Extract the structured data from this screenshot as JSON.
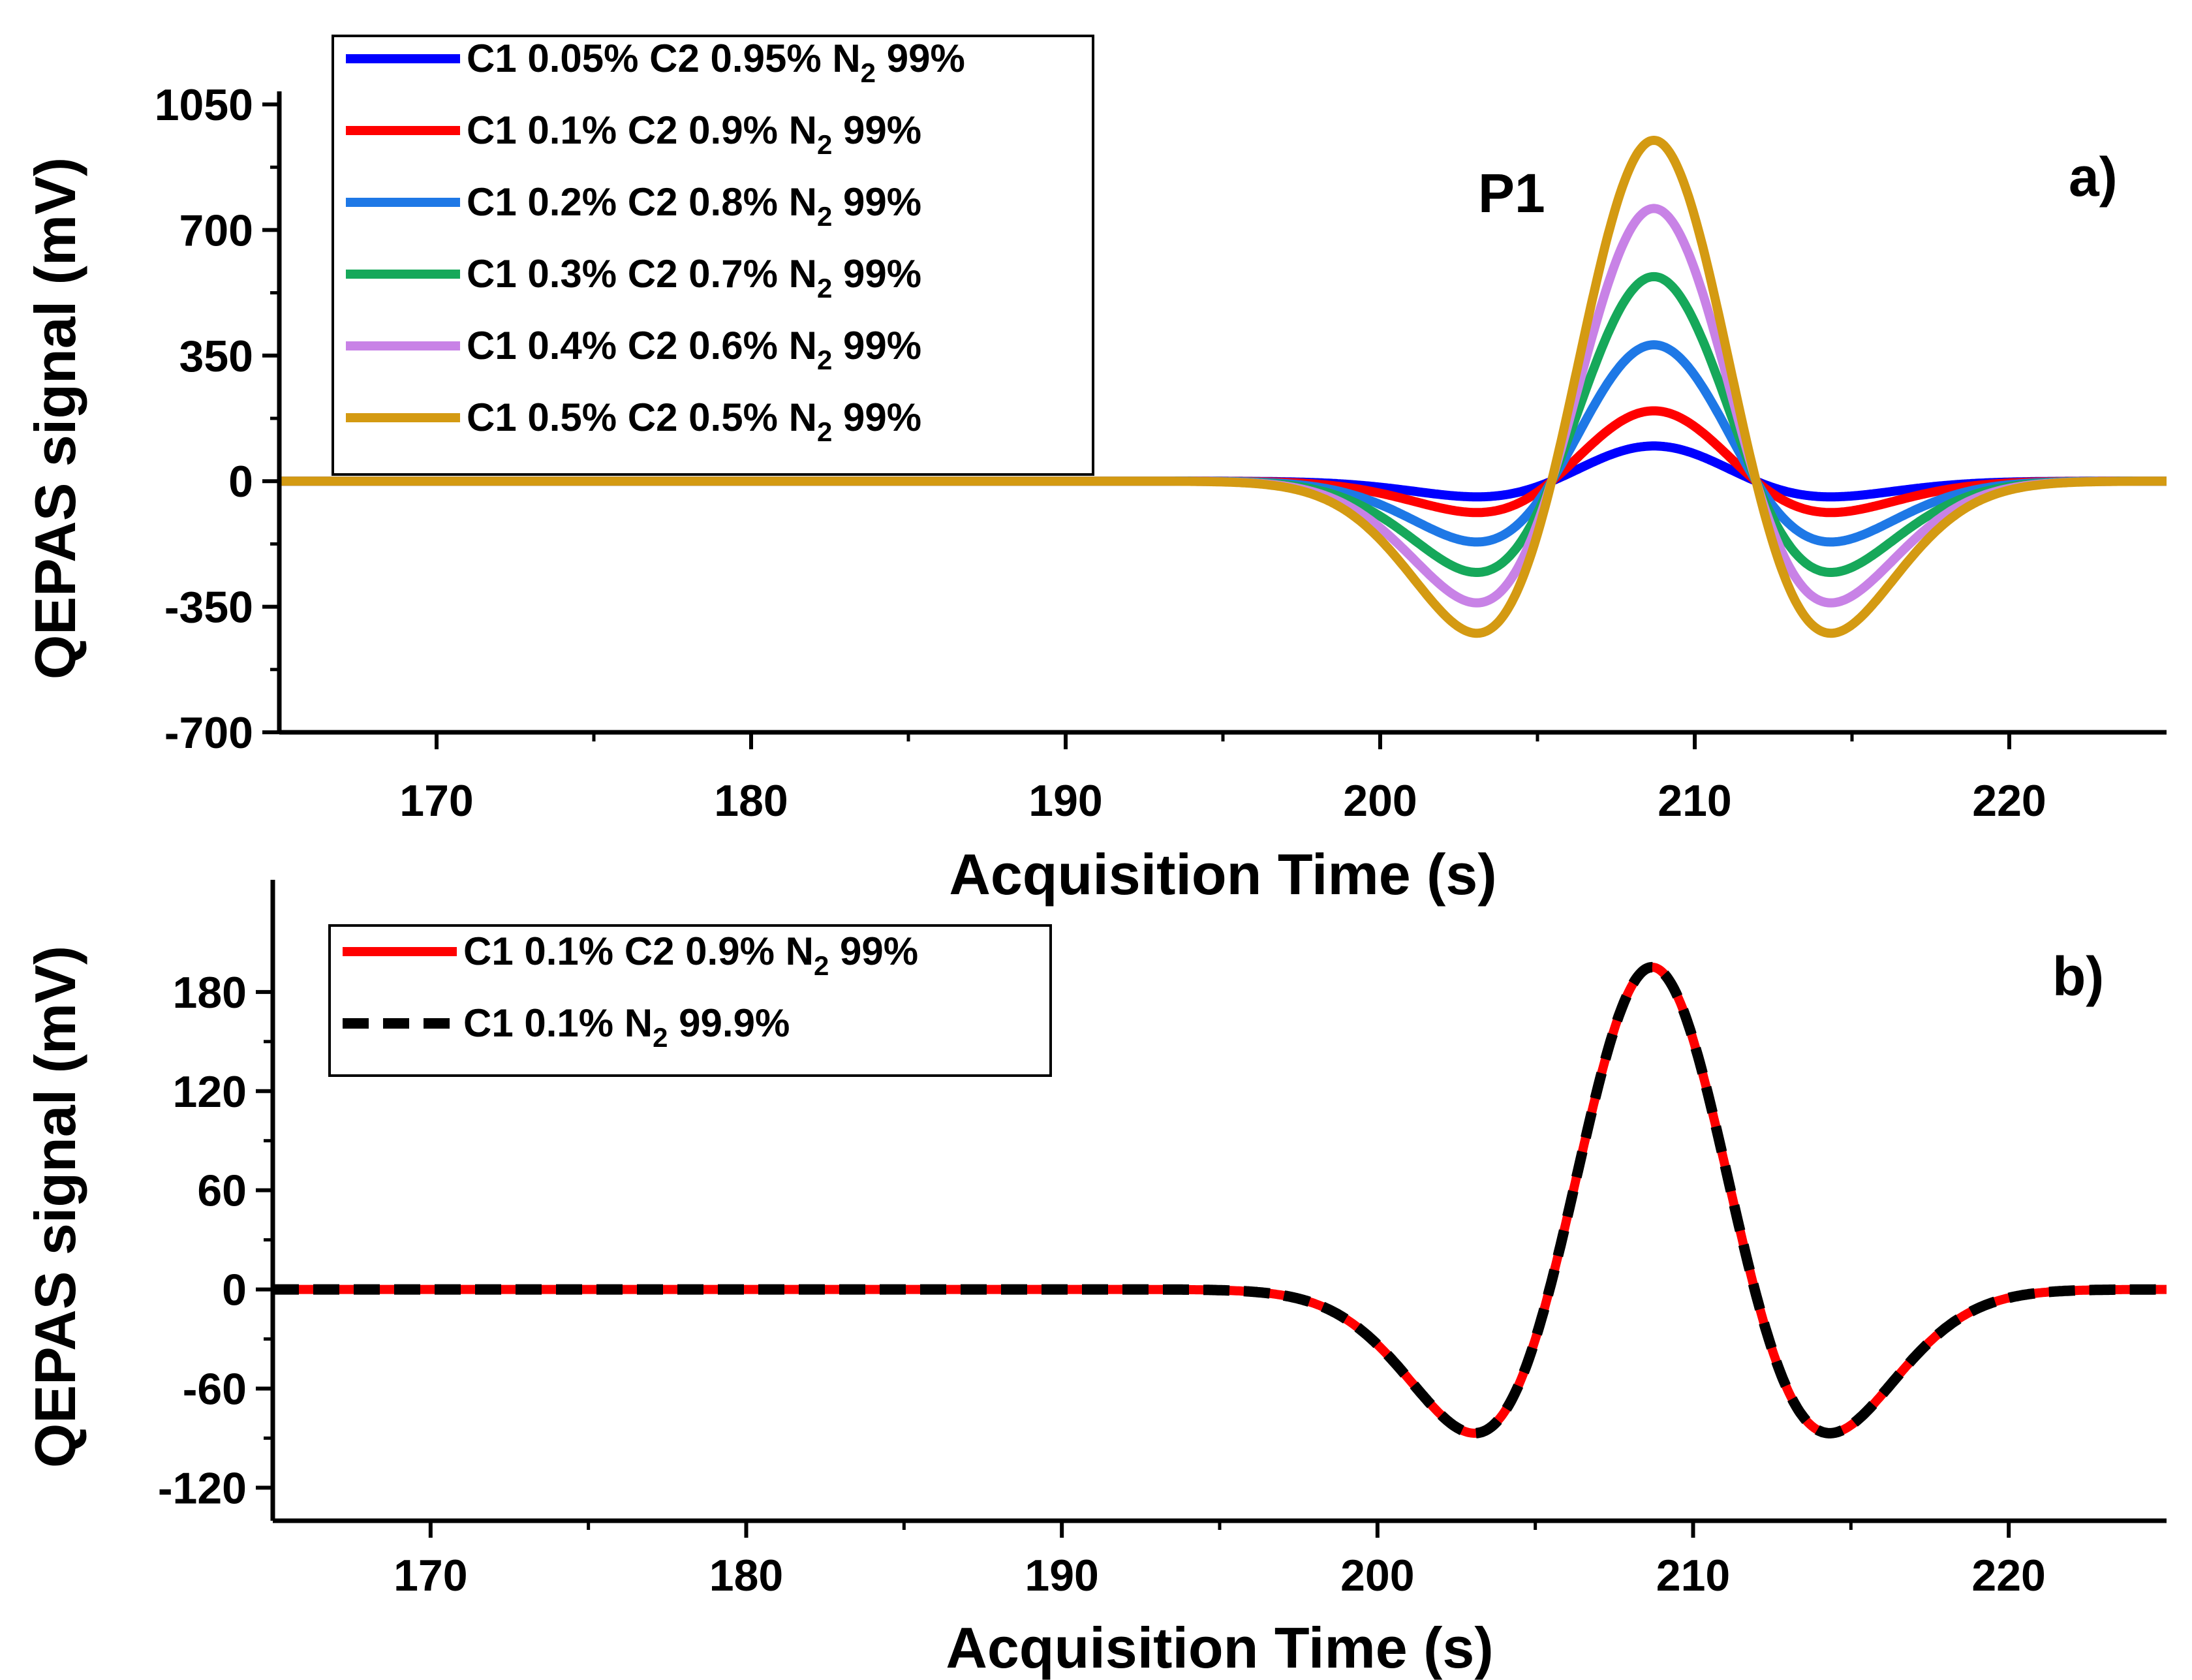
{
  "chart_data": [
    {
      "type": "line",
      "panel_label": "a)",
      "annotation": "P1",
      "xlabel": "Acquisition Time (s)",
      "ylabel": "QEPAS signal (mV)",
      "xlim": [
        165,
        225
      ],
      "ylim": [
        -700,
        1050
      ],
      "xticks": [
        170,
        180,
        190,
        200,
        210,
        220
      ],
      "yticks": [
        -700,
        -350,
        0,
        350,
        700,
        1050
      ],
      "pulse": {
        "center": 208.7,
        "width": 3.25
      },
      "series": [
        {
          "name": "C1 0.05% C2 0.95% N2 99%",
          "label_main": "C1 0.05% C2 0.95% N",
          "label_sub": "2",
          "label_tail": " 99%",
          "color": "#0000ff",
          "dash": "solid",
          "amplitude": 98
        },
        {
          "name": "C1 0.1% C2 0.9% N2 99%",
          "label_main": "C1 0.1% C2 0.9% N",
          "label_sub": "2",
          "label_tail": " 99%",
          "color": "#ff0000",
          "dash": "solid",
          "amplitude": 196
        },
        {
          "name": "C1 0.2% C2 0.8% N2 99%",
          "label_main": "C1 0.2% C2 0.8% N",
          "label_sub": "2",
          "label_tail": " 99%",
          "color": "#1e78e6",
          "dash": "solid",
          "amplitude": 380
        },
        {
          "name": "C1 0.3% C2 0.7% N2 99%",
          "label_main": "C1 0.3% C2 0.7% N",
          "label_sub": "2",
          "label_tail": " 99%",
          "color": "#16a85a",
          "dash": "solid",
          "amplitude": 570
        },
        {
          "name": "C1 0.4% C2 0.6% N2 99%",
          "label_main": "C1 0.4% C2 0.6% N",
          "label_sub": "2",
          "label_tail": " 99%",
          "color": "#c882e6",
          "dash": "solid",
          "amplitude": 760
        },
        {
          "name": "C1 0.5% C2 0.5% N2 99%",
          "label_main": "C1 0.5% C2 0.5% N",
          "label_sub": "2",
          "label_tail": " 99%",
          "color": "#d49a12",
          "dash": "solid",
          "amplitude": 950
        }
      ]
    },
    {
      "type": "line",
      "panel_label": "b)",
      "xlabel": "Acquisition Time (s)",
      "ylabel": "QEPAS signal (mV)",
      "xlim": [
        165,
        225
      ],
      "ylim": [
        -140,
        240
      ],
      "xticks": [
        170,
        180,
        190,
        200,
        210,
        220
      ],
      "yticks": [
        -120,
        -60,
        0,
        60,
        120,
        180
      ],
      "pulse": {
        "center": 208.7,
        "width": 3.25
      },
      "series": [
        {
          "name": "C1 0.1% C2 0.9% N2 99%",
          "label_main": "C1 0.1% C2 0.9% N",
          "label_sub": "2",
          "label_tail": " 99%",
          "color": "#ff0000",
          "dash": "solid",
          "amplitude": 195
        },
        {
          "name": "C1 0.1% N2 99.9%",
          "label_main": "C1 0.1% N",
          "label_sub": "2",
          "label_tail": " 99.9%",
          "color": "#000000",
          "dash": "dashed",
          "amplitude": 195
        }
      ]
    }
  ]
}
